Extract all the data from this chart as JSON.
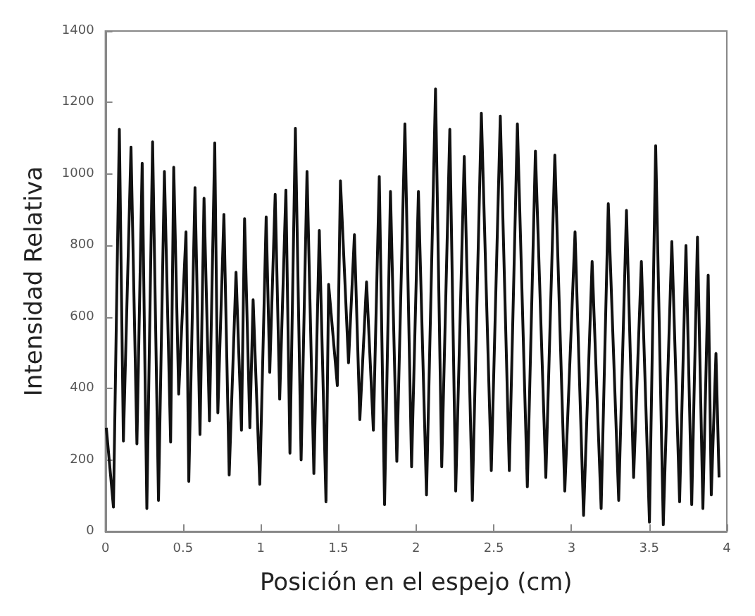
{
  "chart_data": {
    "type": "line",
    "xlabel": "Posición en el espejo (cm)",
    "ylabel": "Intensidad Relativa",
    "xlim": [
      0,
      4
    ],
    "xticks": [
      0,
      0.5,
      1,
      1.5,
      2,
      2.5,
      3,
      3.5,
      4
    ],
    "ylim": [
      0,
      1400
    ],
    "yticks": [
      0,
      200,
      400,
      600,
      800,
      1000,
      1200,
      1400
    ],
    "grid": false,
    "marker": "none",
    "line_style": "solid",
    "series": [
      {
        "color": "#111111",
        "x": [
          0.006,
          0.052,
          0.09,
          0.116,
          0.165,
          0.203,
          0.237,
          0.267,
          0.304,
          0.342,
          0.38,
          0.42,
          0.44,
          0.472,
          0.519,
          0.537,
          0.577,
          0.609,
          0.635,
          0.67,
          0.704,
          0.724,
          0.763,
          0.797,
          0.841,
          0.876,
          0.896,
          0.93,
          0.951,
          0.994,
          1.035,
          1.058,
          1.093,
          1.122,
          1.162,
          1.188,
          1.223,
          1.26,
          1.298,
          1.342,
          1.377,
          1.42,
          1.437,
          1.493,
          1.513,
          1.565,
          1.603,
          1.638,
          1.681,
          1.725,
          1.763,
          1.797,
          1.835,
          1.876,
          1.928,
          1.971,
          2.015,
          2.067,
          2.125,
          2.165,
          2.217,
          2.255,
          2.31,
          2.362,
          2.42,
          2.484,
          2.542,
          2.6,
          2.652,
          2.716,
          2.768,
          2.835,
          2.893,
          2.957,
          3.023,
          3.078,
          3.133,
          3.191,
          3.237,
          3.304,
          3.354,
          3.4,
          3.45,
          3.502,
          3.542,
          3.591,
          3.646,
          3.696,
          3.737,
          3.774,
          3.811,
          3.846,
          3.88,
          3.9,
          3.93,
          3.95
        ],
        "values": [
          290,
          68,
          1125,
          253,
          1075,
          245,
          1030,
          64,
          1090,
          87,
          1007,
          250,
          1019,
          384,
          838,
          140,
          962,
          271,
          932,
          309,
          1087,
          332,
          887,
          158,
          725,
          283,
          875,
          290,
          648,
          132,
          880,
          445,
          943,
          370,
          955,
          219,
          1128,
          200,
          1007,
          162,
          842,
          83,
          691,
          408,
          981,
          472,
          830,
          313,
          698,
          283,
          993,
          75,
          951,
          196,
          1140,
          181,
          951,
          102,
          1238,
          181,
          1125,
          113,
          1049,
          87,
          1170,
          170,
          1162,
          170,
          1140,
          125,
          1064,
          151,
          1053,
          113,
          838,
          45,
          755,
          64,
          917,
          87,
          898,
          151,
          755,
          26,
          1079,
          19,
          811,
          83,
          800,
          75,
          823,
          64,
          717,
          102,
          498,
          151
        ]
      }
    ]
  }
}
